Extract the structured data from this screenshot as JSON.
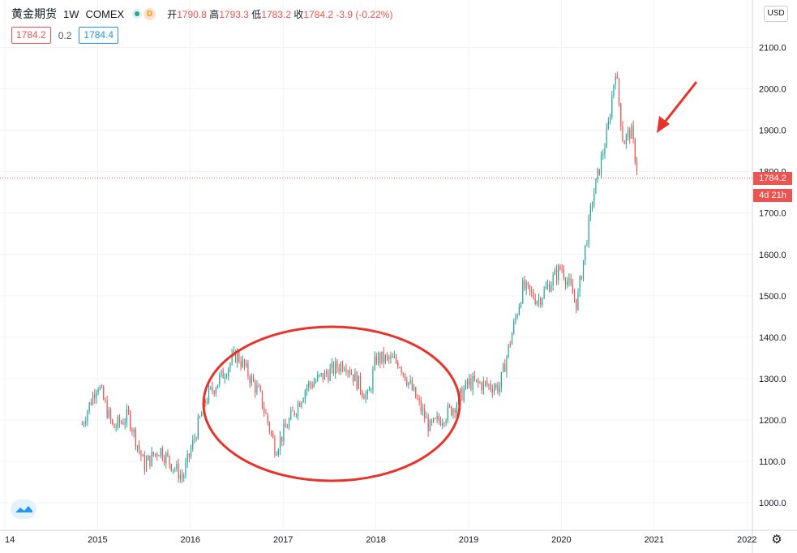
{
  "header": {
    "symbol": "黄金期货",
    "interval": "1W",
    "exchange": "COMEX",
    "badge_delayed": "D",
    "open_label": "开",
    "open": "1790.8",
    "high_label": "高",
    "high": "1793.3",
    "low_label": "低",
    "low": "1783.2",
    "close_label": "收",
    "close": "1784.2",
    "change": "-3.9 (-0.22%)"
  },
  "quote": {
    "bid": "1784.2",
    "spread": "0.2",
    "ask": "1784.4"
  },
  "currency": "USD",
  "price_tag": {
    "price": "1784.2",
    "countdown": "4d 21h"
  },
  "annotations": {
    "circle": "red-ellipse",
    "arrow": "red-arrow"
  },
  "colors": {
    "up": "#26a69a",
    "down": "#ef5350",
    "annotation": "#e8332a",
    "grid": "#f0f3fa"
  },
  "chart_data": {
    "type": "candlestick",
    "title": "",
    "xlabel": "",
    "ylabel": "",
    "ylim": [
      950,
      2140
    ],
    "y_ticks": [
      "1000.0",
      "1100.0",
      "1200.0",
      "1300.0",
      "1400.0",
      "1500.0",
      "1600.0",
      "1700.0",
      "1800.0",
      "1900.0",
      "2000.0",
      "2100.0"
    ],
    "x_ticks": [
      "2014",
      "2015",
      "2016",
      "2017",
      "2018",
      "2019",
      "2020",
      "2021",
      "2022"
    ],
    "x_tick_labels": [
      "14",
      "2015",
      "2016",
      "2017",
      "2018",
      "2019",
      "2020",
      "2021",
      "2022"
    ],
    "last_price": 1784.2,
    "weekly_close_path": [
      {
        "t": "2014-11",
        "v": 1190
      },
      {
        "t": "2015-01",
        "v": 1290
      },
      {
        "t": "2015-03",
        "v": 1180
      },
      {
        "t": "2015-05",
        "v": 1210
      },
      {
        "t": "2015-07",
        "v": 1090
      },
      {
        "t": "2015-09",
        "v": 1130
      },
      {
        "t": "2015-12",
        "v": 1060
      },
      {
        "t": "2016-03",
        "v": 1250
      },
      {
        "t": "2016-07",
        "v": 1360
      },
      {
        "t": "2016-10",
        "v": 1260
      },
      {
        "t": "2016-12",
        "v": 1130
      },
      {
        "t": "2017-04",
        "v": 1280
      },
      {
        "t": "2017-09",
        "v": 1340
      },
      {
        "t": "2017-12",
        "v": 1250
      },
      {
        "t": "2018-01",
        "v": 1350
      },
      {
        "t": "2018-04",
        "v": 1340
      },
      {
        "t": "2018-08",
        "v": 1180
      },
      {
        "t": "2018-11",
        "v": 1230
      },
      {
        "t": "2019-01",
        "v": 1290
      },
      {
        "t": "2019-05",
        "v": 1280
      },
      {
        "t": "2019-08",
        "v": 1520
      },
      {
        "t": "2019-10",
        "v": 1490
      },
      {
        "t": "2020-01",
        "v": 1570
      },
      {
        "t": "2020-03",
        "v": 1480
      },
      {
        "t": "2020-05",
        "v": 1730
      },
      {
        "t": "2020-07",
        "v": 1900
      },
      {
        "t": "2020-08",
        "v": 2050
      },
      {
        "t": "2020-09",
        "v": 1870
      },
      {
        "t": "2020-10",
        "v": 1900
      },
      {
        "t": "2020-11",
        "v": 1784
      }
    ]
  }
}
